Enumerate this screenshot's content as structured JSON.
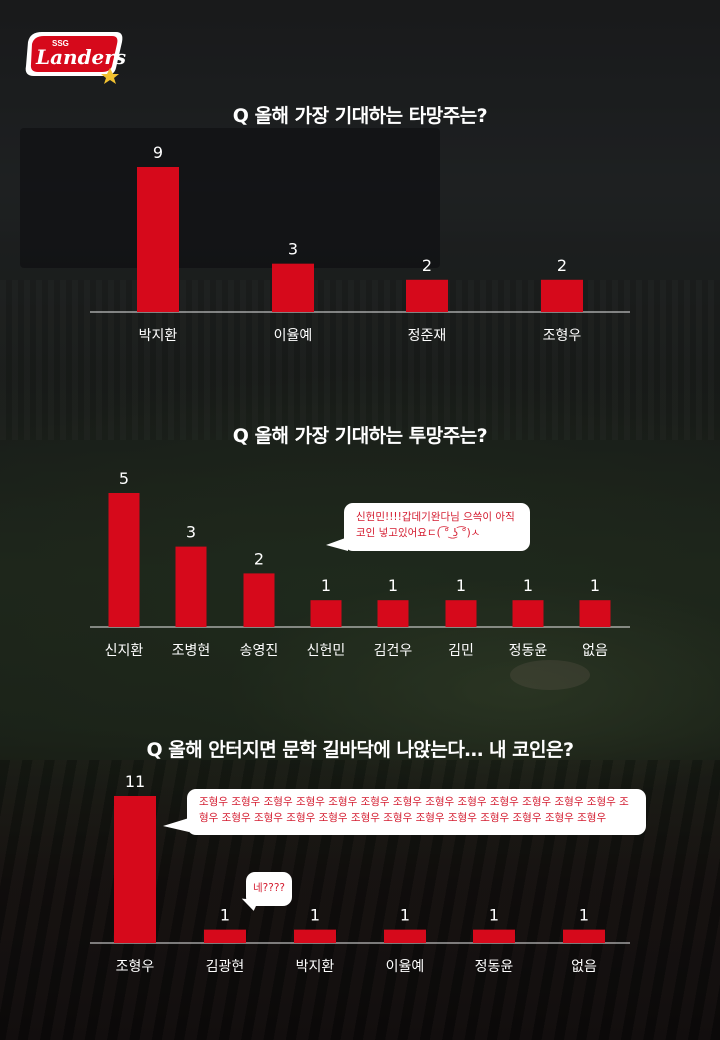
{
  "brand": {
    "logo_small": "SSG",
    "logo_main": "Landers",
    "accent": "#d6091b"
  },
  "chart_data": [
    {
      "type": "bar",
      "title": "Q 올해 가장 기대하는 타망주는?",
      "categories": [
        "박지환",
        "이율예",
        "정준재",
        "조형우"
      ],
      "values": [
        9,
        3,
        2,
        2
      ],
      "xlabel": "",
      "ylabel": "",
      "ylim": [
        0,
        9
      ],
      "bar_color": "#d6091b",
      "grid": false
    },
    {
      "type": "bar",
      "title": "Q 올해 가장 기대하는 투망주는?",
      "categories": [
        "신지환",
        "조병현",
        "송영진",
        "신헌민",
        "김건우",
        "김민",
        "정동윤",
        "없음"
      ],
      "values": [
        5,
        3,
        2,
        1,
        1,
        1,
        1,
        1
      ],
      "xlabel": "",
      "ylabel": "",
      "ylim": [
        0,
        5
      ],
      "bar_color": "#d6091b",
      "grid": false
    },
    {
      "type": "bar",
      "title": "Q 올해 안터지면 문학 길바닥에 나앉는다… 내 코인은?",
      "categories": [
        "조형우",
        "김광현",
        "박지환",
        "이율예",
        "정동윤",
        "없음"
      ],
      "values": [
        11,
        1,
        1,
        1,
        1,
        1
      ],
      "xlabel": "",
      "ylabel": "",
      "ylim": [
        0,
        11
      ],
      "bar_color": "#d6091b",
      "grid": false
    }
  ],
  "comments": {
    "pitcher_comment": "신헌민!!!!갑데기완다님 으쓱이 아직 코인 넣고있어요ㄷ( ͡° ͜ʖ ͡°)ㅅ",
    "coin_comment_1": "조형우 조형우 조형우 조형우 조형우 조형우 조형우 조형우 조형우 조형우 조형우 조형우 조형우 조형우 조형우 조형우 조형우 조형우 조형우 조형우 조형우 조형우 조형우 조형우 조형우 조형우",
    "coin_comment_2": "네????"
  }
}
